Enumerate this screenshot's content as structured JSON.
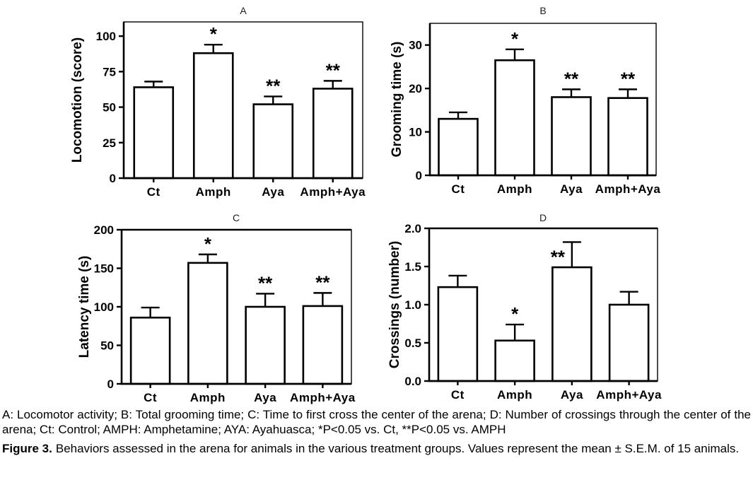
{
  "chart_data": [
    {
      "type": "bar",
      "panel": "A",
      "title": "A",
      "xlabel": "",
      "ylabel": "Locomotion (score)",
      "categories": [
        "Ct",
        "Amph",
        "Aya",
        "Amph+Aya"
      ],
      "values": [
        64,
        88,
        52,
        63
      ],
      "errors_sem": [
        4,
        6,
        5.5,
        5.5
      ],
      "significance": [
        "",
        "*",
        "**",
        "**"
      ],
      "yticks": [
        0,
        25,
        50,
        75,
        100
      ],
      "ytick_labels": [
        "0",
        "25",
        "50",
        "75",
        "100"
      ],
      "ylim": [
        0,
        110
      ],
      "grid": false,
      "legend": null,
      "bar_fill": "#ffffff",
      "bar_stroke": "#000000"
    },
    {
      "type": "bar",
      "panel": "B",
      "title": "B",
      "xlabel": "",
      "ylabel": "Grooming time (s)",
      "categories": [
        "Ct",
        "Amph",
        "Aya",
        "Amph+Aya"
      ],
      "values": [
        13,
        26.5,
        18,
        17.8
      ],
      "errors_sem": [
        1.5,
        2.5,
        1.8,
        2
      ],
      "significance": [
        "",
        "*",
        "**",
        "**"
      ],
      "yticks": [
        0,
        10,
        20,
        30
      ],
      "ytick_labels": [
        "0",
        "10",
        "20",
        "30"
      ],
      "ylim": [
        0,
        35
      ],
      "grid": false,
      "legend": null,
      "bar_fill": "#ffffff",
      "bar_stroke": "#000000"
    },
    {
      "type": "bar",
      "panel": "C",
      "title": "C",
      "xlabel": "",
      "ylabel": "Latency time (s)",
      "categories": [
        "Ct",
        "Amph",
        "Aya",
        "Amph+Aya"
      ],
      "values": [
        86,
        157,
        100,
        101
      ],
      "errors_sem": [
        13,
        11,
        17,
        17
      ],
      "significance": [
        "",
        "*",
        "**",
        "**"
      ],
      "yticks": [
        0,
        50,
        100,
        150,
        200
      ],
      "ytick_labels": [
        "0",
        "50",
        "100",
        "150",
        "200"
      ],
      "ylim": [
        0,
        200
      ],
      "grid": false,
      "legend": null,
      "bar_fill": "#ffffff",
      "bar_stroke": "#000000"
    },
    {
      "type": "bar",
      "panel": "D",
      "title": "D",
      "xlabel": "",
      "ylabel": "Crossings (number)",
      "categories": [
        "Ct",
        "Amph",
        "Aya",
        "Amph+Aya"
      ],
      "values": [
        1.23,
        0.53,
        1.49,
        1.0
      ],
      "errors_sem": [
        0.15,
        0.21,
        0.33,
        0.17
      ],
      "significance": [
        "",
        "*",
        "**",
        ""
      ],
      "yticks": [
        0,
        0.5,
        1,
        1.5,
        2
      ],
      "ytick_labels": [
        "0.0",
        "0.5",
        "1.0",
        "1.5",
        "2.0"
      ],
      "ylim": [
        0,
        2
      ],
      "grid": false,
      "legend": null,
      "bar_fill": "#ffffff",
      "bar_stroke": "#000000"
    }
  ],
  "caption": {
    "abbreviations": "A: Locomotor activity; B: Total grooming time; C: Time to first cross the center of the arena; D: Number of crossings through the center of the arena; Ct: Control; AMPH: Amphetamine; AYA: Ayahuasca; *P<0.05 vs. Ct, **P<0.05 vs. AMPH",
    "figure_label": "Figure 3.",
    "figure_text": "Behaviors assessed in the arena for animals in the various treatment groups. Values represent the mean ± S.E.M. of 15 animals."
  }
}
